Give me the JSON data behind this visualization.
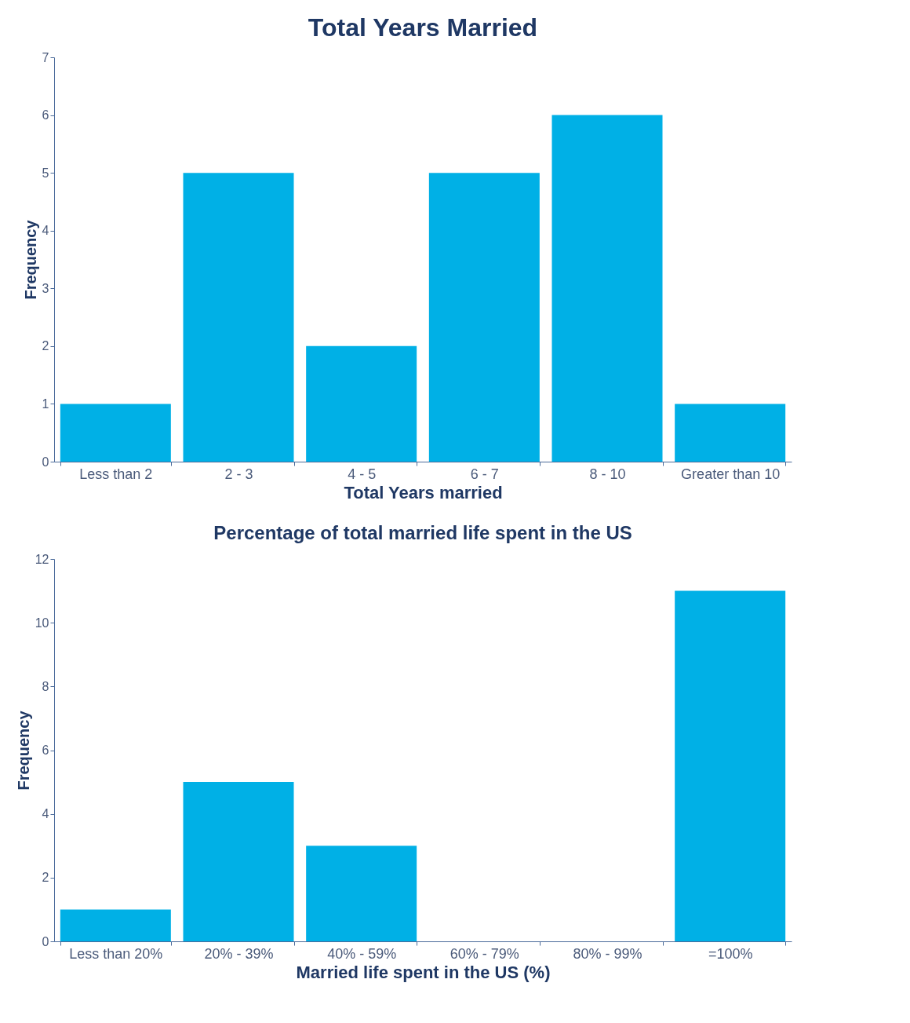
{
  "chart_data": [
    {
      "type": "bar",
      "title": "Total Years Married",
      "xlabel": "Total Years married",
      "ylabel": "Frequency",
      "categories": [
        "Less than 2",
        "2 - 3",
        "4 - 5",
        "6 - 7",
        "8 - 10",
        "Greater than 10"
      ],
      "values": [
        1,
        5,
        2,
        5,
        6,
        1
      ],
      "color": "#00b0e6",
      "ylim": [
        0,
        7
      ],
      "yticks": [
        0,
        1,
        2,
        3,
        4,
        5,
        6,
        7
      ]
    },
    {
      "type": "bar",
      "title": "Percentage of total married life spent in the US",
      "xlabel": "Married life spent in the US (%)",
      "ylabel": "Frequency",
      "categories": [
        "Less than 20%",
        "20% - 39%",
        "40% - 59%",
        "60% - 79%",
        "80% - 99%",
        "=100%"
      ],
      "values": [
        1,
        5,
        3,
        0,
        0,
        11
      ],
      "color": "#00b0e6",
      "ylim": [
        0,
        12
      ],
      "yticks": [
        0,
        2,
        4,
        6,
        8,
        10,
        12
      ]
    }
  ]
}
